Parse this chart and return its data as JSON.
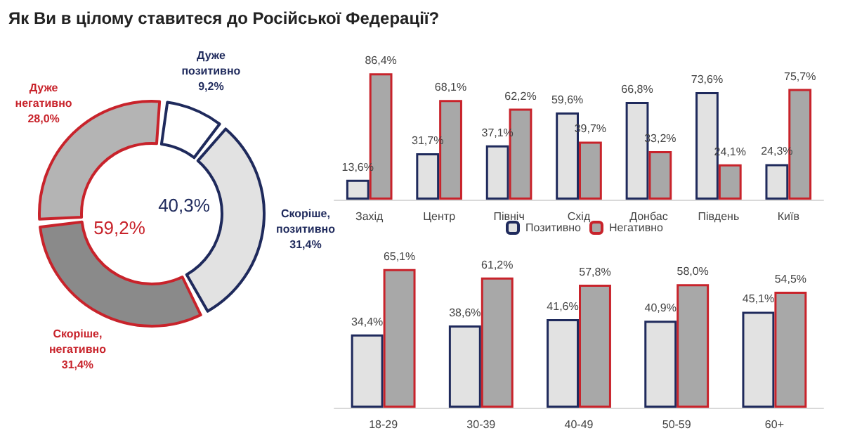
{
  "chart_data": [
    {
      "type": "donut",
      "title": "Як Ви в цілому ставитеся до Російської Федерації?",
      "categories": [
        "Дуже позитивно",
        "Скоріше, позитивно",
        "Скоріше, негативно",
        "Дуже негативно"
      ],
      "values": [
        9.2,
        31.4,
        31.4,
        28.0
      ],
      "value_labels": [
        "9,2%",
        "31,4%",
        "31,4%",
        "28,0%"
      ],
      "colors": [
        "#ffffff",
        "#e2e2e2",
        "#8a8a8a",
        "#b4b4b4"
      ],
      "annotations": [
        "40,3%",
        "59,2%"
      ]
    },
    {
      "type": "bar",
      "categories": [
        "Захід",
        "Центр",
        "Північ",
        "Схід",
        "Донбас",
        "Південь",
        "Київ"
      ],
      "legend": "bottom",
      "series": [
        {
          "name": "Позитивно",
          "color": "#e2e2e2",
          "values": [
            13.6,
            31.7,
            37.1,
            59.6,
            66.8,
            73.6,
            24.3
          ],
          "value_labels": [
            "13,6%",
            "31,7%",
            "37,1%",
            "59,6%",
            "66,8%",
            "73,6%",
            "24,3%"
          ]
        },
        {
          "name": "Негативно",
          "color": "#a8a8a8",
          "values": [
            86.4,
            68.1,
            62.2,
            39.7,
            33.2,
            24.1,
            75.7
          ],
          "value_labels": [
            "86,4%",
            "68,1%",
            "62,2%",
            "39,7%",
            "33,2%",
            "24,1%",
            "75,7%"
          ]
        }
      ]
    },
    {
      "type": "bar",
      "categories": [
        "18-29",
        "30-39",
        "40-49",
        "50-59",
        "60+"
      ],
      "series": [
        {
          "color": "#e2e2e2",
          "values": [
            34.4,
            38.6,
            41.6,
            40.9,
            45.1
          ],
          "value_labels": [
            "34,4%",
            "38,6%",
            "41,6%",
            "40,9%",
            "45,1%"
          ]
        },
        {
          "color": "#a8a8a8",
          "values": [
            65.1,
            61.2,
            57.8,
            58.0,
            54.5
          ],
          "value_labels": [
            "65,1%",
            "61,2%",
            "57,8%",
            "58,0%",
            "54,5%"
          ]
        }
      ]
    }
  ]
}
